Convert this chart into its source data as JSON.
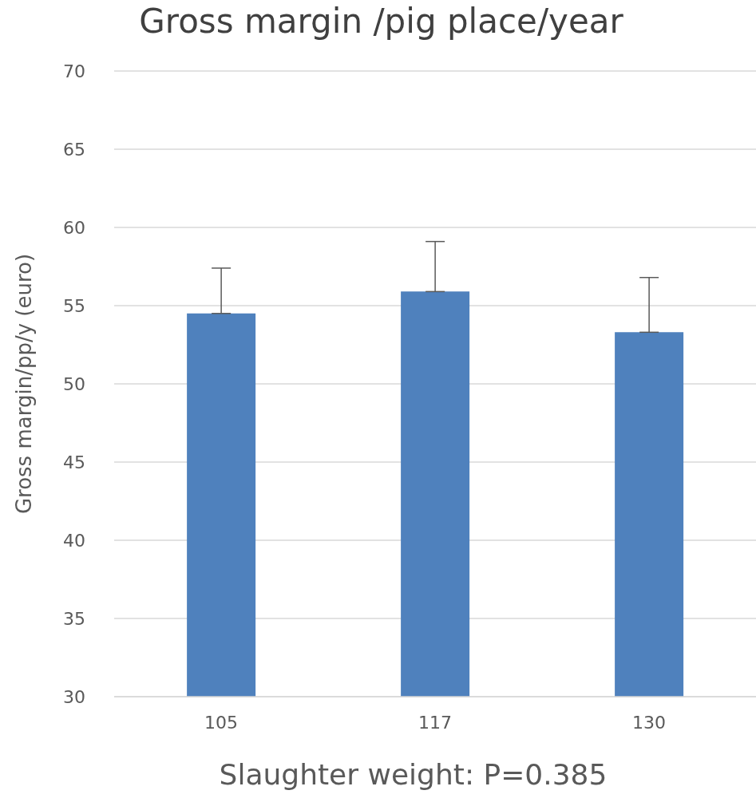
{
  "chart_data": {
    "type": "bar",
    "title": "Gross margin /pig place/year",
    "xlabel": "Slaughter weight: P=0.385",
    "ylabel": "Gross margin/pp/y (euro)",
    "categories": [
      "105",
      "117",
      "130"
    ],
    "values": [
      54.5,
      55.9,
      53.3
    ],
    "errors": [
      [
        54.5,
        57.4
      ],
      [
        55.9,
        59.1
      ],
      [
        53.3,
        56.8
      ]
    ],
    "color": "#4f81bd",
    "ylim": [
      30,
      70
    ],
    "yticks": [
      30,
      35,
      40,
      45,
      50,
      55,
      60,
      65,
      70
    ],
    "grid": "y"
  }
}
